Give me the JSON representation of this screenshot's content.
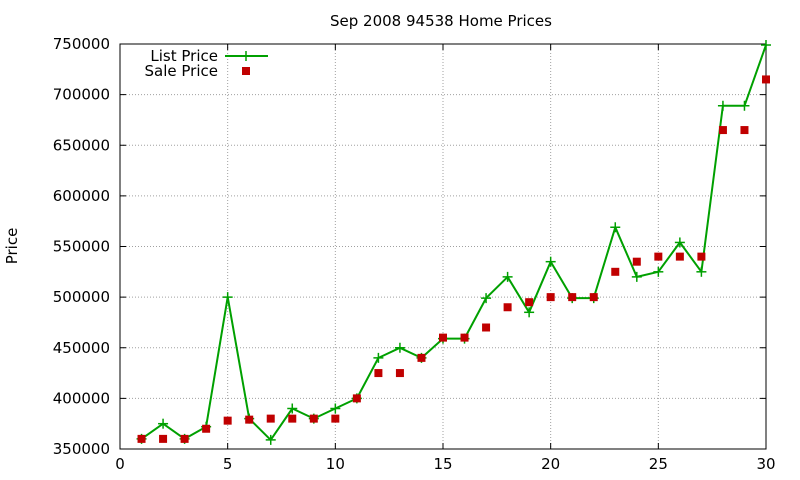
{
  "chart_data": {
    "type": "line",
    "title": "Sep 2008 94538 Home Prices",
    "xlabel": "",
    "ylabel": "Price",
    "xlim": [
      0,
      30
    ],
    "ylim": [
      350000,
      750000
    ],
    "xticks": [
      0,
      5,
      10,
      15,
      20,
      25,
      30
    ],
    "yticks": [
      350000,
      400000,
      450000,
      500000,
      550000,
      600000,
      650000,
      700000,
      750000
    ],
    "grid": true,
    "legend_position": "top-left",
    "x": [
      1,
      2,
      3,
      4,
      5,
      6,
      7,
      8,
      9,
      10,
      11,
      12,
      13,
      14,
      15,
      16,
      17,
      18,
      19,
      20,
      21,
      22,
      23,
      24,
      25,
      26,
      27,
      28,
      29,
      30
    ],
    "series": [
      {
        "name": "List Price",
        "style": "lines+crosses",
        "color": "#00a000",
        "values": [
          360000,
          375000,
          360000,
          372000,
          500000,
          380000,
          359000,
          390000,
          380000,
          390000,
          400000,
          440000,
          450000,
          440000,
          459000,
          459000,
          499000,
          520000,
          485000,
          535000,
          499000,
          499000,
          569000,
          520000,
          525000,
          554000,
          525000,
          689000,
          689000,
          749000
        ]
      },
      {
        "name": "Sale Price",
        "style": "squares",
        "color": "#c00000",
        "values": [
          360000,
          360000,
          360000,
          370000,
          378000,
          379000,
          380000,
          380000,
          380000,
          380000,
          400000,
          425000,
          425000,
          440000,
          460000,
          460000,
          470000,
          490000,
          495000,
          500000,
          500000,
          500000,
          525000,
          535000,
          540000,
          540000,
          540000,
          665000,
          665000,
          715000
        ]
      }
    ]
  }
}
